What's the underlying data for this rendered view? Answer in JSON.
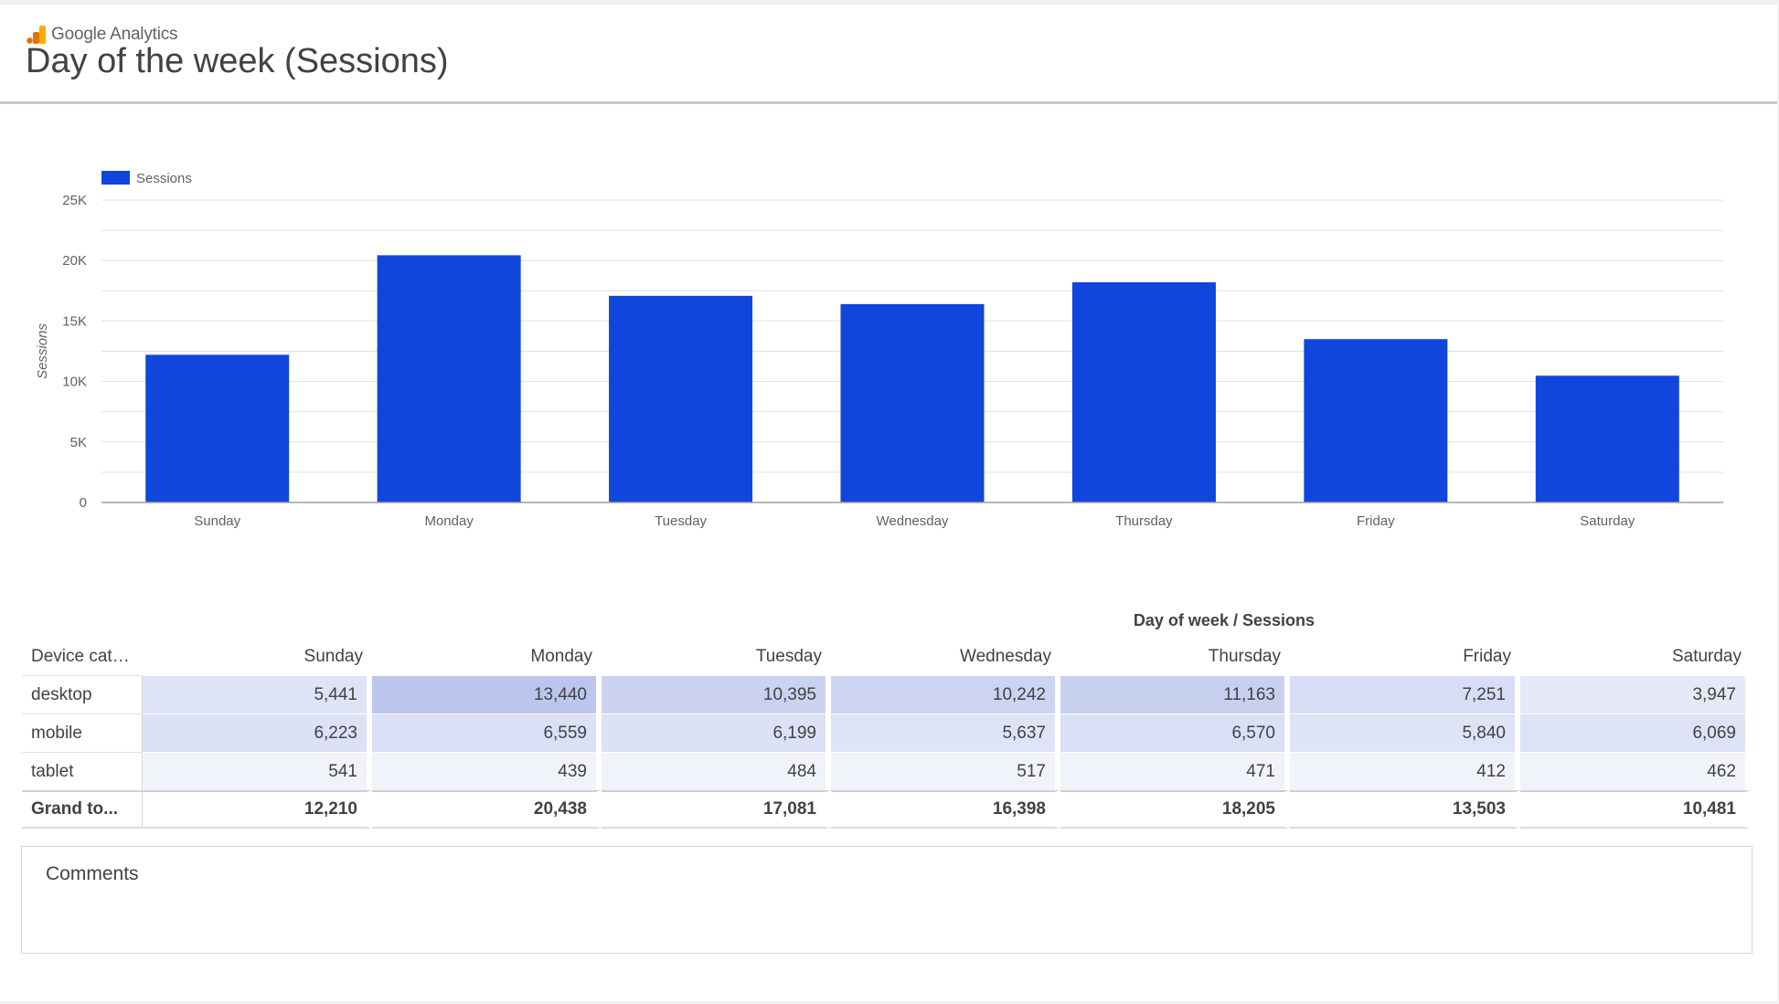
{
  "header": {
    "brand": "Google Analytics",
    "title": "Day of the week (Sessions)"
  },
  "colors": {
    "bar": "#1146dc",
    "brand_orange": "#f9ab00",
    "brand_dark_orange": "#e37400",
    "grid": "#e0e0e0"
  },
  "chart_data": {
    "type": "bar",
    "legend": {
      "label": "Sessions",
      "position": "top-left"
    },
    "ylabel": "Sessions",
    "ylim": [
      0,
      25000
    ],
    "yticks": [
      "0",
      "5K",
      "10K",
      "15K",
      "20K",
      "25K"
    ],
    "grid": true,
    "categories": [
      "Sunday",
      "Monday",
      "Tuesday",
      "Wednesday",
      "Thursday",
      "Friday",
      "Saturday"
    ],
    "series": [
      {
        "name": "Sessions",
        "values": [
          12210,
          20438,
          17081,
          16398,
          18205,
          13503,
          10481
        ]
      }
    ]
  },
  "pivot": {
    "title": "Day of week / Sessions",
    "dim_header": "Device cate...",
    "columns": [
      "Sunday",
      "Monday",
      "Tuesday",
      "Wednesday",
      "Thursday",
      "Friday",
      "Saturday"
    ],
    "rows": [
      {
        "label": "desktop",
        "values": [
          "5,441",
          "13,440",
          "10,395",
          "10,242",
          "11,163",
          "7,251",
          "3,947"
        ],
        "shade": [
          0.3,
          0.75,
          0.55,
          0.52,
          0.6,
          0.38,
          0.2
        ]
      },
      {
        "label": "mobile",
        "values": [
          "6,223",
          "6,559",
          "6,199",
          "5,637",
          "6,570",
          "5,840",
          "6,069"
        ],
        "shade": [
          0.32,
          0.34,
          0.32,
          0.29,
          0.34,
          0.3,
          0.31
        ]
      },
      {
        "label": "tablet",
        "values": [
          "541",
          "439",
          "484",
          "517",
          "471",
          "412",
          "462"
        ],
        "shade": [
          0.04,
          0.04,
          0.04,
          0.04,
          0.04,
          0.04,
          0.04
        ]
      }
    ],
    "total": {
      "label": "Grand to...",
      "values": [
        "12,210",
        "20,438",
        "17,081",
        "16,398",
        "18,205",
        "13,503",
        "10,481"
      ]
    }
  },
  "comments": {
    "label": "Comments"
  }
}
